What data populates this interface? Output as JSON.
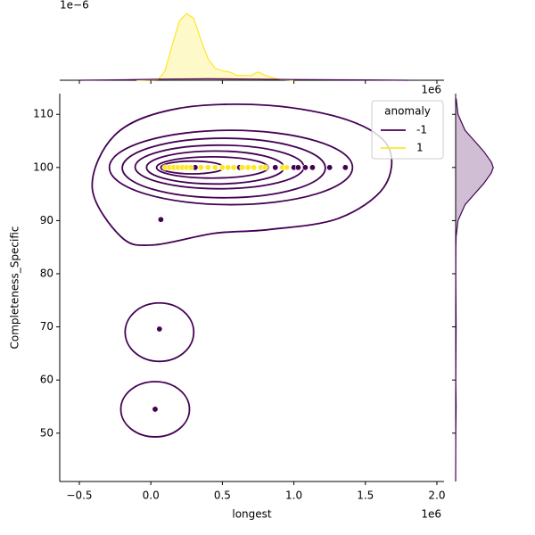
{
  "chart_data": [
    {
      "type": "scatter",
      "xlabel": "longest",
      "ylabel": "Completeness_Specific",
      "x_offset_text": "1e6",
      "xlim": [
        -0.637,
        2.05
      ],
      "ylim": [
        40.9,
        113.9
      ],
      "xticks": [
        {
          "value": -0.5,
          "label": "−0.5"
        },
        {
          "value": 0,
          "label": "0.0"
        },
        0.5,
        {
          "value": 1,
          "label": "1.0"
        },
        1.5,
        {
          "value": 2,
          "label": "2.0"
        }
      ],
      "yticks": [
        50,
        60,
        70,
        80,
        90,
        100,
        110
      ],
      "legend": {
        "title": "anomaly",
        "corner": "upper right"
      },
      "series": [
        {
          "name": "-1",
          "color": "#440154",
          "x": [
            0.07,
            0.06,
            0.03,
            0.31,
            0.62,
            0.87,
            1.0,
            1.03,
            1.08,
            1.13,
            1.25,
            1.36
          ],
          "values": [
            90.2,
            69.6,
            54.5,
            100,
            100,
            100,
            100,
            100,
            100,
            100,
            100,
            100
          ],
          "contour": {
            "x": [
              -0.41,
              -0.24,
              0.19,
              0.82,
              1.38,
              1.66,
              1.63,
              1.31,
              0.82,
              0.44,
              0.01,
              -0.21
            ],
            "values": [
              96.3,
              106.4,
              111.1,
              111.7,
              108.9,
              103.9,
              96.3,
              90.4,
              88.3,
              87.6,
              85.4,
              87.0
            ]
          },
          "ellipses": [
            {
              "cx": 0.56,
              "cy": 100,
              "rx": 0.85,
              "ry": 7.0
            },
            {
              "cx": 0.51,
              "cy": 99.9,
              "rx": 0.71,
              "ry": 5.6
            },
            {
              "cx": 0.48,
              "cy": 100.1,
              "rx": 0.59,
              "ry": 4.1
            },
            {
              "cx": 0.45,
              "cy": 100,
              "rx": 0.48,
              "ry": 3.1
            },
            {
              "cx": 0.43,
              "cy": 100,
              "rx": 0.39,
              "ry": 2.0
            },
            {
              "cx": 0.29,
              "cy": 100,
              "rx": 0.22,
              "ry": 1.2
            },
            {
              "cx": 0.06,
              "cy": 69.0,
              "rx": 0.24,
              "ry": 5.5
            },
            {
              "cx": 0.03,
              "cy": 54.5,
              "rx": 0.24,
              "ry": 5.2
            }
          ]
        },
        {
          "name": "1",
          "color": "#fde725",
          "x": [
            0.1,
            0.13,
            0.16,
            0.19,
            0.22,
            0.25,
            0.28,
            0.35,
            0.4,
            0.45,
            0.5,
            0.54,
            0.58,
            0.64,
            0.68,
            0.72,
            0.77,
            0.8,
            0.92,
            0.95
          ],
          "values": [
            100,
            100,
            100,
            100,
            100,
            100,
            100,
            100,
            100,
            100,
            100,
            100,
            100,
            100,
            100,
            100,
            100,
            100,
            100,
            100
          ]
        }
      ]
    },
    {
      "type": "kde",
      "orientation": "vertical",
      "y_offset_text": "1e−6",
      "x_offset_text": "1e6",
      "xlim": [
        -0.637,
        2.05
      ],
      "ylim": [
        0,
        3.0
      ],
      "xticks": [
        -0.5,
        0,
        0.5,
        1,
        1.5,
        2
      ],
      "series": [
        {
          "name": "1",
          "color": "#fde725",
          "x": [
            -0.1,
            0.05,
            0.1,
            0.15,
            0.2,
            0.25,
            0.3,
            0.35,
            0.4,
            0.45,
            0.5,
            0.55,
            0.6,
            0.7,
            0.75,
            0.8,
            0.9,
            1.0
          ],
          "values": [
            0,
            0.02,
            0.4,
            1.5,
            2.5,
            2.8,
            2.6,
            1.7,
            0.9,
            0.5,
            0.4,
            0.35,
            0.2,
            0.2,
            0.35,
            0.2,
            0.03,
            0
          ]
        },
        {
          "name": "-1",
          "color": "#440154",
          "x": [
            -0.5,
            -0.2,
            0.1,
            0.4,
            0.7,
            1.0,
            1.3,
            1.6,
            1.8
          ],
          "values": [
            0,
            0.02,
            0.05,
            0.06,
            0.05,
            0.03,
            0.02,
            0.01,
            0
          ]
        }
      ]
    },
    {
      "type": "kde",
      "orientation": "horizontal",
      "ylim": [
        40.9,
        113.9
      ],
      "xlim": [
        0,
        0.165
      ],
      "yticks": [
        50,
        60,
        70,
        80,
        90,
        100,
        110
      ],
      "series": [
        {
          "name": "-1",
          "color": "#440154",
          "y": [
            113,
            110,
            107,
            105,
            103,
            101,
            100,
            99,
            97,
            95,
            93,
            90,
            87,
            85,
            80,
            70,
            60,
            55,
            50,
            45,
            41
          ],
          "values": [
            0.001,
            0.005,
            0.02,
            0.04,
            0.06,
            0.076,
            0.08,
            0.076,
            0.06,
            0.04,
            0.02,
            0.005,
            0.001,
            0.0005,
            0.0003,
            0.001,
            0.0003,
            0.001,
            0.0003,
            0.0001,
            0
          ]
        }
      ]
    }
  ]
}
